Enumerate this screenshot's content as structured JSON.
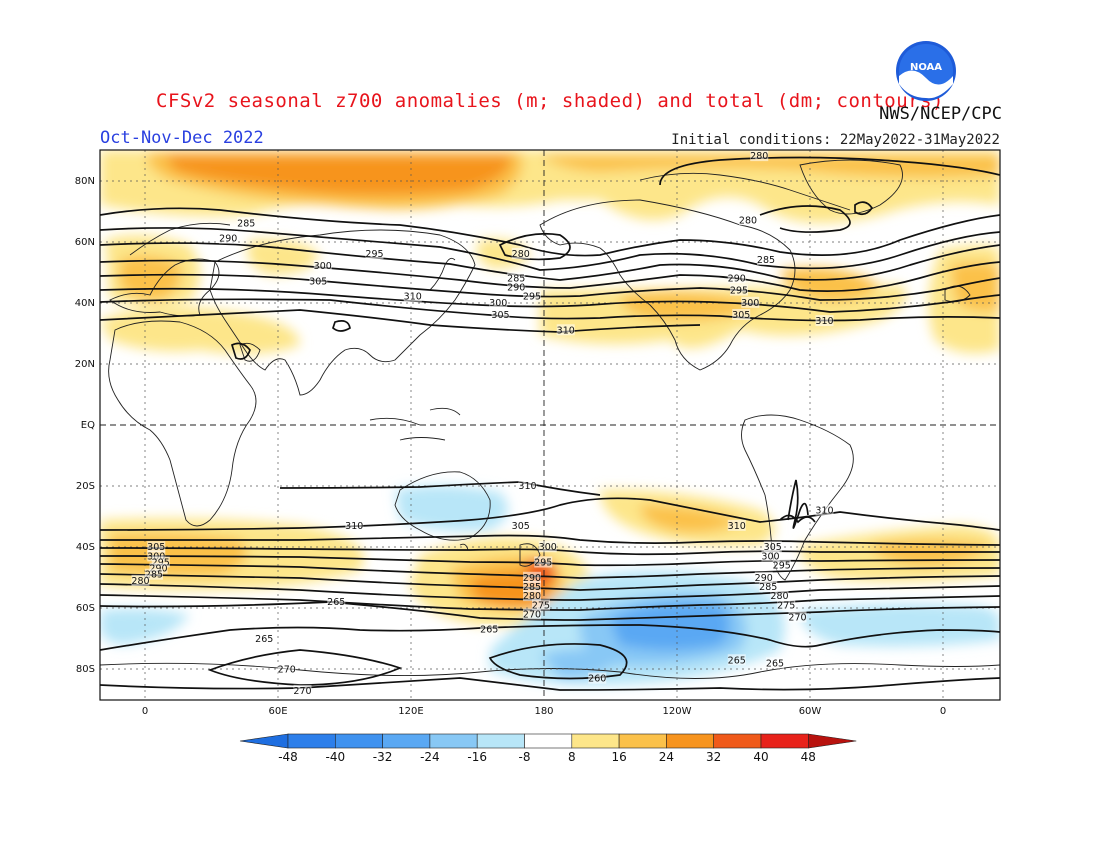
{
  "header": {
    "title": "CFSv2 seasonal z700 anomalies (m; shaded) and total (dm; contours)",
    "agency": "NWS/NCEP/CPC",
    "logo_text": "NOAA",
    "period": "Oct-Nov-Dec 2022",
    "initial_conditions": "Initial conditions: 22May2022-31May2022"
  },
  "map": {
    "lat_ticks": [
      "80N",
      "60N",
      "40N",
      "20N",
      "EQ",
      "20S",
      "40S",
      "60S",
      "80S"
    ],
    "lon_ticks": [
      "0",
      "60E",
      "120E",
      "180",
      "120W",
      "60W",
      "0"
    ],
    "contour_labels": [
      {
        "text": "285",
        "lon": 45,
        "lat": 66
      },
      {
        "text": "290",
        "lon": 37,
        "lat": 61
      },
      {
        "text": "295",
        "lon": 102,
        "lat": 56
      },
      {
        "text": "300",
        "lon": 79,
        "lat": 52
      },
      {
        "text": "305",
        "lon": 77,
        "lat": 47
      },
      {
        "text": "310",
        "lon": 119,
        "lat": 42
      },
      {
        "text": "280",
        "lon": 167,
        "lat": 56
      },
      {
        "text": "285",
        "lon": 165,
        "lat": 48
      },
      {
        "text": "290",
        "lon": 165,
        "lat": 45
      },
      {
        "text": "295",
        "lon": 172,
        "lat": 42
      },
      {
        "text": "300",
        "lon": 157,
        "lat": 40
      },
      {
        "text": "305",
        "lon": 158,
        "lat": 36
      },
      {
        "text": "310",
        "lon": 187,
        "lat": 31
      },
      {
        "text": "280",
        "lon": 273,
        "lat": 88
      },
      {
        "text": "280",
        "lon": 268,
        "lat": 67
      },
      {
        "text": "285",
        "lon": 276,
        "lat": 54
      },
      {
        "text": "290",
        "lon": 263,
        "lat": 48
      },
      {
        "text": "295",
        "lon": 264,
        "lat": 44
      },
      {
        "text": "300",
        "lon": 269,
        "lat": 40
      },
      {
        "text": "305",
        "lon": 265,
        "lat": 36
      },
      {
        "text": "310",
        "lon": 302,
        "lat": 34
      },
      {
        "text": "310",
        "lon": 170,
        "lat": -20
      },
      {
        "text": "305",
        "lon": 167,
        "lat": -33
      },
      {
        "text": "310",
        "lon": 93,
        "lat": -33
      },
      {
        "text": "310",
        "lon": 263,
        "lat": -33
      },
      {
        "text": "310",
        "lon": 302,
        "lat": -28
      },
      {
        "text": "305",
        "lon": 5,
        "lat": -40
      },
      {
        "text": "300",
        "lon": 5,
        "lat": -43
      },
      {
        "text": "295",
        "lon": 7,
        "lat": -45
      },
      {
        "text": "290",
        "lon": 6,
        "lat": -47
      },
      {
        "text": "285",
        "lon": 4,
        "lat": -49
      },
      {
        "text": "280",
        "lon": -2,
        "lat": -51
      },
      {
        "text": "300",
        "lon": 179,
        "lat": -40
      },
      {
        "text": "295",
        "lon": 177,
        "lat": -45
      },
      {
        "text": "290",
        "lon": 172,
        "lat": -50
      },
      {
        "text": "285",
        "lon": 172,
        "lat": -53
      },
      {
        "text": "280",
        "lon": 172,
        "lat": -56
      },
      {
        "text": "275",
        "lon": 176,
        "lat": -59
      },
      {
        "text": "270",
        "lon": 172,
        "lat": -62
      },
      {
        "text": "305",
        "lon": 279,
        "lat": -40
      },
      {
        "text": "300",
        "lon": 278,
        "lat": -43
      },
      {
        "text": "295",
        "lon": 283,
        "lat": -46
      },
      {
        "text": "290",
        "lon": 275,
        "lat": -50
      },
      {
        "text": "285",
        "lon": 277,
        "lat": -53
      },
      {
        "text": "280",
        "lon": 282,
        "lat": -56
      },
      {
        "text": "275",
        "lon": 285,
        "lat": -59
      },
      {
        "text": "270",
        "lon": 290,
        "lat": -63
      },
      {
        "text": "265",
        "lon": 280,
        "lat": -78
      },
      {
        "text": "265",
        "lon": 263,
        "lat": -77
      },
      {
        "text": "265",
        "lon": 85,
        "lat": -58
      },
      {
        "text": "265",
        "lon": 53,
        "lat": -70
      },
      {
        "text": "265",
        "lon": 153,
        "lat": -67
      },
      {
        "text": "270",
        "lon": 63,
        "lat": -80
      },
      {
        "text": "270",
        "lon": 70,
        "lat": -87
      },
      {
        "text": "260",
        "lon": 201,
        "lat": -83
      }
    ]
  },
  "colorbar": {
    "labels": [
      "-48",
      "-40",
      "-32",
      "-24",
      "-16",
      "-8",
      "8",
      "16",
      "24",
      "32",
      "40",
      "48"
    ],
    "colors": [
      "#1e6ee0",
      "#2d7fea",
      "#3f92ef",
      "#5aa8f3",
      "#88c8f5",
      "#b8e6f8",
      "#ffffff",
      "#fde68a",
      "#fbc14a",
      "#f7941e",
      "#f05a1a",
      "#e8221a",
      "#b8120e"
    ]
  },
  "colors": {
    "title": "#e8141c",
    "period": "#2a40e0"
  }
}
